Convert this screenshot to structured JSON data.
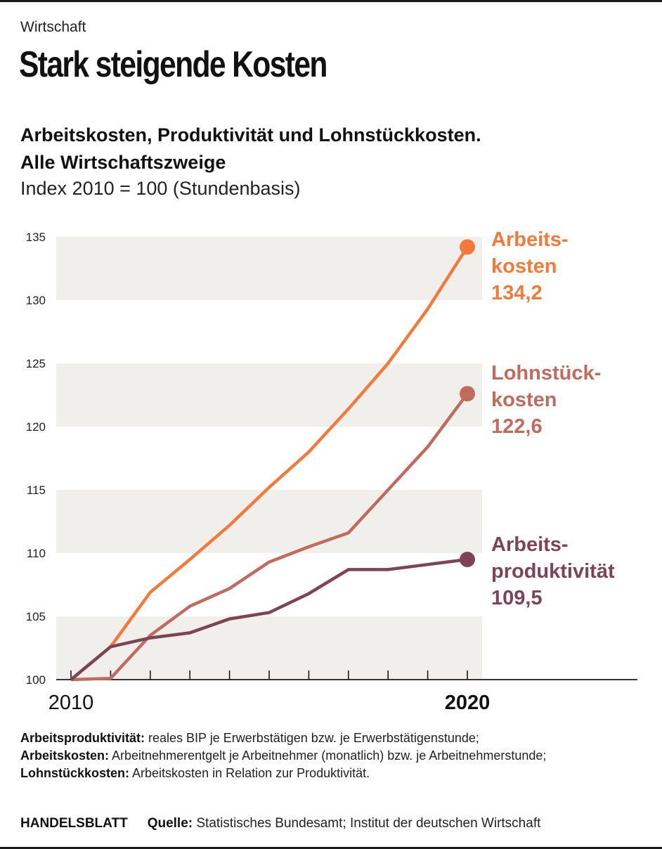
{
  "kicker": "Wirtschaft",
  "headline": "Stark steigende Kosten",
  "subtitle_line1": "Arbeitskosten, Produktivität und Lohnstückkosten.",
  "subtitle_line2": "Alle Wirtschaftszweige",
  "unit": "Index 2010 = 100 (Stundenbasis)",
  "colors": {
    "arbeitskosten": "#f47a3c",
    "lohnstueckkosten": "#c16b5e",
    "produktivitaet": "#7e4355",
    "band": "#f0efec",
    "axis": "#1a1a1a"
  },
  "chart_data": {
    "type": "line",
    "title": "Arbeitskosten, Produktivität und Lohnstückkosten. Alle Wirtschaftszweige",
    "ylabel": "Index 2010 = 100 (Stundenbasis)",
    "xlabel": "",
    "x": [
      2010,
      2011,
      2012,
      2013,
      2014,
      2015,
      2016,
      2017,
      2018,
      2019,
      2020
    ],
    "x_tick_labels": [
      {
        "value": 2010,
        "label": "2010",
        "bold": false
      },
      {
        "value": 2020,
        "label": "2020",
        "bold": true
      }
    ],
    "ylim": [
      100,
      135
    ],
    "yticks": [
      100,
      105,
      110,
      115,
      120,
      125,
      130,
      135
    ],
    "grid": "alternating-bands",
    "series": [
      {
        "key": "arbeitskosten",
        "name": "Arbeitskosten",
        "label_lines": [
          "Arbeits-",
          "kosten"
        ],
        "end_label": "134,2",
        "values": [
          100,
          102.6,
          106.9,
          109.5,
          112.2,
          115.2,
          118.0,
          121.4,
          125.0,
          129.3,
          134.2
        ]
      },
      {
        "key": "lohnstueckkosten",
        "name": "Lohnstückkosten",
        "label_lines": [
          "Lohnstück-",
          "kosten"
        ],
        "end_label": "122,6",
        "values": [
          100,
          100.1,
          103.5,
          105.8,
          107.2,
          109.3,
          110.5,
          111.6,
          115.0,
          118.4,
          122.6
        ]
      },
      {
        "key": "produktivitaet",
        "name": "Arbeitsproduktivität",
        "label_lines": [
          "Arbeits-",
          "produktivität"
        ],
        "end_label": "109,5",
        "values": [
          100,
          102.6,
          103.3,
          103.7,
          104.8,
          105.3,
          106.8,
          108.7,
          108.7,
          109.1,
          109.5
        ]
      }
    ]
  },
  "notes": [
    {
      "term": "Arbeitsproduktivität:",
      "text": " reales BIP je Erwerbstätigen bzw. je Erwerbstätigenstunde;"
    },
    {
      "term": "Arbeitskosten:",
      "text": " Arbeitnehmerentgelt je Arbeitnehmer (monatlich) bzw. je Arbeitnehmerstunde;"
    },
    {
      "term": "Lohnstückkosten:",
      "text": " Arbeitskosten in Relation zur Produktivität."
    }
  ],
  "footer": {
    "brand": "HANDELSBLATT",
    "source_label": "Quelle:",
    "source_text": " Statistisches Bundesamt; Institut der deutschen Wirtschaft"
  }
}
